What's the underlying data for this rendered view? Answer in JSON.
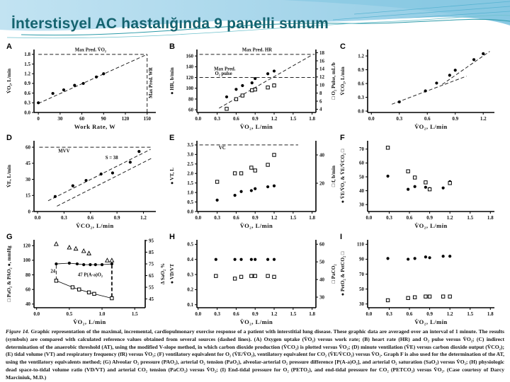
{
  "slide": {
    "title": "İnterstisyel AC hastalığında 9 panelli sunum"
  },
  "colors": {
    "title_text": "#14636f",
    "header_blue": "#aad7ea",
    "header_blue_dark": "#84c6e0",
    "wave_line": "#2b9aa8",
    "ink": "#111111"
  },
  "caption": {
    "label": "Figure 14.",
    "text": " Graphic representation of the maximal, incremental, cardiopulmonary exercise response of a patient with interstitial lung disease. These graphic data are averaged over an interval of 1 minute. The results (symbols) are compared with calculated reference values obtained from several sources (dashed lines). (A) Oxygen uptake (V̇O₂) versus work rate; (B) heart rate (HR) and O₂ pulse versus V̇O₂; (C) indirect determination of the anaerobic threshold (AT), using the modified V-slope method, in which carbon dioxide production (V̇CO₂) is plotted versus V̇O₂; (D) minute ventilation (V̇E) versus carbon dioxide output (V̇CO₂); (E) tidal volume (VT) and respiratory frequency (fR) versus V̇O₂; (F) ventilatory equivalent for O₂ (V̇E/V̇O₂), ventilatory equivalent for CO₂ (V̇E/V̇CO₂) versus V̇O₂. Graph F is also used for the determination of the AT, using the ventilatory equivalents method; (G) Alveolar O₂ pressure (PAO₂), arterial O₂ tension (PaO₂), alveolar-arterial O₂ pressure difference [P(A-a)O₂], and arterial O₂ saturation (SaO₂) versus V̇O₂; (H) physiologic dead space-to-tidal volume ratio (VD/VT) and arterial CO₂ tension (PaCO₂) versus V̇O₂; (I) End-tidal pressure for O₂ (PETO₂), and end-tidal pressure for CO₂ (PETCO₂) versus V̇O₂. (Case courtesy of Darcy Marciniuk, M.D.)"
  },
  "chart_data": [
    {
      "id": "A",
      "type": "scatter",
      "xlabel": "Work Rate, W",
      "ylabel": "V̇O₂, L/min",
      "xlim": [
        -6,
        162
      ],
      "ylim": [
        0,
        1.95
      ],
      "xticks": {
        "v": [
          0,
          30,
          60,
          90,
          120,
          150
        ],
        "t": [
          "0",
          "30",
          "60",
          "90",
          "120",
          "150"
        ]
      },
      "yticks": {
        "v": [
          0,
          0.3,
          0.6,
          0.9,
          1.2,
          1.5,
          1.8
        ],
        "t": [
          "0.0",
          "0.3",
          "0.6",
          "0.9",
          "1.2",
          "1.5",
          "1.8"
        ]
      },
      "series": [
        {
          "name": "VO2",
          "marker": "fc",
          "axis": "l",
          "connect": false,
          "x": [
            0,
            20,
            35,
            50,
            62,
            80,
            90
          ],
          "y": [
            0.3,
            0.59,
            0.7,
            0.84,
            0.9,
            1.1,
            1.2
          ]
        }
      ],
      "lines": [
        {
          "x1": 0,
          "y1": 1.8,
          "x2": 150,
          "y2": 1.8
        },
        {
          "x1": 150,
          "y1": 0,
          "x2": 150,
          "y2": 1.8
        },
        {
          "x1": 0,
          "y1": 0.28,
          "x2": 150,
          "y2": 1.8
        }
      ],
      "ann": [
        {
          "x": 72,
          "y": 1.89,
          "t": "Max Pred. V̇O₂"
        },
        {
          "x": 157,
          "y": 0.92,
          "t": "Max Pred. WR",
          "r": -90
        }
      ]
    },
    {
      "id": "B",
      "type": "scatter",
      "xlabel": "V̇O₂, L/min",
      "ylabel": "● HR, b/min",
      "y2label": "□ O₂ Pulse, mL/b",
      "xlim": [
        -0.02,
        1.86
      ],
      "ylim": [
        55,
        172
      ],
      "y2lim": [
        3.2,
        18.8
      ],
      "xticks": {
        "v": [
          0,
          0.3,
          0.6,
          0.9,
          1.2,
          1.5,
          1.8
        ],
        "t": [
          "0.0",
          "0.3",
          "0.6",
          "0.9",
          "1.2",
          "1.5",
          "1.8"
        ]
      },
      "yticks": {
        "v": [
          60,
          80,
          100,
          120,
          140,
          160
        ],
        "t": [
          "60",
          "80",
          "100",
          "120",
          "140",
          "160"
        ]
      },
      "y2ticks": {
        "v": [
          4,
          6,
          8,
          10,
          12,
          14,
          16,
          18
        ],
        "t": [
          "4",
          "6",
          "8",
          "10",
          "12",
          "14",
          "16",
          "18"
        ]
      },
      "series": [
        {
          "name": "HR",
          "marker": "fc",
          "axis": "l",
          "connect": false,
          "x": [
            0.45,
            0.6,
            0.7,
            0.85,
            0.9,
            1.1,
            1.2
          ],
          "y": [
            84,
            98,
            105,
            110,
            118,
            127,
            132
          ]
        },
        {
          "name": "O2 pulse",
          "marker": "os",
          "axis": "r",
          "connect": false,
          "x": [
            0.45,
            0.6,
            0.7,
            0.85,
            0.9,
            1.1,
            1.2
          ],
          "y": [
            4.1,
            6.5,
            7.4,
            8.7,
            8.9,
            9.4,
            9.9
          ]
        }
      ],
      "lines": [
        {
          "x1": 0.02,
          "y1": 163,
          "x2": 1.84,
          "y2": 163
        },
        {
          "x1": 0.02,
          "y1": 120,
          "x2": 1.84,
          "y2": 120
        },
        {
          "x1": 0.33,
          "y1": 63,
          "x2": 1.8,
          "y2": 162
        }
      ],
      "ann": [
        {
          "x": 0.93,
          "y": 169,
          "t": "Max Pred. HR"
        },
        {
          "x": 0.42,
          "y": 133,
          "t": "Max Pred."
        },
        {
          "x": 0.4,
          "y": 124.5,
          "t": "O₂ pulse"
        }
      ]
    },
    {
      "id": "C",
      "type": "scatter",
      "xlabel": "V̇O₂, L/min",
      "ylabel": "V̇CO₂, L/min",
      "xlim": [
        -0.04,
        1.32
      ],
      "ylim": [
        -0.03,
        1.34
      ],
      "xticks": {
        "v": [
          0,
          0.3,
          0.6,
          0.9,
          1.2
        ],
        "t": [
          "0.0",
          "0.3",
          "0.6",
          "0.9",
          "1.2"
        ]
      },
      "yticks": {
        "v": [
          0,
          0.3,
          0.6,
          0.9,
          1.2
        ],
        "t": [
          "0.0",
          "0.3",
          "0.6",
          "0.9",
          "1.2"
        ]
      },
      "series": [
        {
          "name": "VCO2",
          "marker": "fc",
          "axis": "l",
          "connect": false,
          "x": [
            0.3,
            0.58,
            0.7,
            0.84,
            0.9,
            1.1,
            1.2
          ],
          "y": [
            0.2,
            0.44,
            0.61,
            0.78,
            0.89,
            1.12,
            1.25
          ]
        }
      ],
      "lines": [
        {
          "x1": 0.22,
          "y1": 0.15,
          "x2": 1.02,
          "y2": 0.76
        },
        {
          "x1": 0.76,
          "y1": 0.58,
          "x2": 1.27,
          "y2": 1.3
        }
      ],
      "ann": []
    },
    {
      "id": "D",
      "type": "scatter",
      "xlabel": "V̇CO₂, L/min",
      "ylabel": "V̇E, L/min",
      "xlim": [
        -0.04,
        1.34
      ],
      "ylim": [
        0,
        66
      ],
      "xticks": {
        "v": [
          0,
          0.3,
          0.6,
          0.9,
          1.2
        ],
        "t": [
          "0.0",
          "0.3",
          "0.6",
          "0.9",
          "1.2"
        ]
      },
      "yticks": {
        "v": [
          0,
          15,
          30,
          45,
          60
        ],
        "t": [
          "0",
          "15",
          "30",
          "45",
          "60"
        ]
      },
      "series": [
        {
          "name": "VE",
          "marker": "fc",
          "axis": "l",
          "connect": false,
          "x": [
            0.2,
            0.4,
            0.55,
            0.72,
            0.85,
            1.05,
            1.15
          ],
          "y": [
            14,
            24,
            29,
            35,
            36,
            46,
            56
          ]
        }
      ],
      "lines": [
        {
          "x1": 0.02,
          "y1": 60,
          "x2": 1.3,
          "y2": 60
        },
        {
          "x1": 0.12,
          "y1": 10,
          "x2": 1.28,
          "y2": 58
        },
        {
          "x1": 0.22,
          "y1": 5,
          "x2": 1.3,
          "y2": 50
        }
      ],
      "ann": [
        {
          "x": 0.3,
          "y": 55,
          "t": "MVV"
        },
        {
          "x": 0.84,
          "y": 49,
          "t": "S = 38"
        }
      ]
    },
    {
      "id": "E",
      "type": "scatter",
      "xlabel": "V̇O₂, L/min",
      "ylabel": "● VT, L",
      "y2label": "□ f, b/min",
      "xlim": [
        -0.02,
        1.86
      ],
      "ylim": [
        0,
        3.72
      ],
      "y2lim": [
        0,
        50
      ],
      "xticks": {
        "v": [
          0,
          0.3,
          0.6,
          0.9,
          1.2,
          1.5,
          1.8
        ],
        "t": [
          "0.0",
          "0.3",
          "0.6",
          "0.9",
          "1.2",
          "1.5",
          "1.8"
        ]
      },
      "yticks": {
        "v": [
          0,
          0.5,
          1.0,
          1.5,
          2.0,
          2.5,
          3.0,
          3.5
        ],
        "t": [
          "0.0",
          "0.5",
          "1.0",
          "1.5",
          "2.0",
          "2.5",
          "3.0",
          "3.5"
        ]
      },
      "y2ticks": {
        "v": [
          20,
          40
        ],
        "t": [
          "20",
          "40"
        ]
      },
      "series": [
        {
          "name": "VT",
          "marker": "fc",
          "axis": "l",
          "connect": false,
          "x": [
            0.3,
            0.58,
            0.68,
            0.84,
            0.9,
            1.1,
            1.2
          ],
          "y": [
            0.6,
            0.85,
            1.05,
            1.1,
            1.2,
            1.3,
            1.35
          ]
        },
        {
          "name": "f",
          "marker": "os",
          "axis": "r",
          "connect": false,
          "x": [
            0.3,
            0.58,
            0.68,
            0.84,
            0.9,
            1.1,
            1.2
          ],
          "y": [
            21,
            27,
            27,
            31,
            29,
            33,
            40
          ]
        }
      ],
      "lines": [
        {
          "x1": 0.02,
          "y1": 3.5,
          "x2": 1.58,
          "y2": 3.5
        }
      ],
      "ann": [
        {
          "x": 0.38,
          "y": 3.28,
          "t": "VC"
        }
      ]
    },
    {
      "id": "F",
      "type": "scatter",
      "xlabel": "V̇O₂, L/min",
      "ylabel": "● V̇E/V̇O₂ & V̇E/V̇CO₂ □",
      "xlim": [
        -0.02,
        1.86
      ],
      "ylim": [
        25,
        76
      ],
      "xticks": {
        "v": [
          0,
          0.3,
          0.6,
          0.9,
          1.2,
          1.5,
          1.8
        ],
        "t": [
          "0.0",
          "0.3",
          "0.6",
          "0.9",
          "1.2",
          "1.5",
          "1.8"
        ]
      },
      "yticks": {
        "v": [
          30,
          40,
          50,
          60,
          70
        ],
        "t": [
          "30",
          "40",
          "50",
          "60",
          "70"
        ]
      },
      "series": [
        {
          "name": "VE/VO2",
          "marker": "fc",
          "axis": "l",
          "connect": false,
          "x": [
            0.28,
            0.58,
            0.68,
            0.84,
            0.9,
            1.1,
            1.2
          ],
          "y": [
            50.5,
            41,
            43,
            42.5,
            41.5,
            42,
            46.5
          ]
        },
        {
          "name": "VE/VCO2",
          "marker": "os",
          "axis": "l",
          "connect": false,
          "x": [
            0.28,
            0.58,
            0.68,
            0.84,
            0.9,
            1.2
          ],
          "y": [
            71,
            54,
            49.5,
            46,
            41,
            45.5
          ]
        }
      ],
      "lines": [],
      "ann": []
    },
    {
      "id": "G",
      "type": "scatter",
      "xlabel": "V̇O₂, L/min",
      "ylabel": "□ PaO₂ & PAO₂ ●, mmHg",
      "y2label": "Δ SaO₂ %",
      "xlim": [
        -0.04,
        1.66
      ],
      "ylim": [
        35,
        128
      ],
      "y2lim": [
        37.5,
        95.6
      ],
      "xticks": {
        "v": [
          0,
          0.5,
          1.0,
          1.5
        ],
        "t": [
          "0.0",
          "0.5",
          "1.0",
          "1.5"
        ]
      },
      "yticks": {
        "v": [
          40,
          60,
          80,
          100,
          120
        ],
        "t": [
          "40",
          "60",
          "80",
          "100",
          "120"
        ]
      },
      "y2ticks": {
        "v": [
          45,
          55,
          65,
          75,
          85,
          95
        ],
        "t": [
          "45",
          "55",
          "65",
          "75",
          "85",
          "95"
        ]
      },
      "series": [
        {
          "name": "PAO2",
          "marker": "fc",
          "axis": "l",
          "connect": true,
          "x": [
            0.3,
            0.5,
            0.62,
            0.72,
            0.82,
            0.9,
            1.0,
            1.15
          ],
          "y": [
            95,
            96,
            95,
            94,
            94,
            94,
            94,
            95
          ]
        },
        {
          "name": "PaO2",
          "marker": "os",
          "axis": "l",
          "connect": true,
          "x": [
            0.3,
            0.55,
            0.65,
            0.8,
            0.88,
            1.15
          ],
          "y": [
            72,
            63,
            60,
            56,
            54,
            48
          ]
        },
        {
          "name": "SaO2",
          "marker": "ot",
          "axis": "r",
          "connect": false,
          "x": [
            0.3,
            0.5,
            0.6,
            0.72,
            0.8,
            1.08,
            1.15
          ],
          "y": [
            92,
            89,
            88,
            86,
            84,
            78,
            78
          ]
        }
      ],
      "lines": [
        {
          "x1": 0.3,
          "y1": 73,
          "x2": 0.3,
          "y2": 93
        },
        {
          "x1": 1.15,
          "y1": 50,
          "x2": 1.15,
          "y2": 93,
          "w": 2
        }
      ],
      "ann": [
        {
          "x": 0.25,
          "y": 83,
          "t": "24"
        },
        {
          "x": 0.82,
          "y": 78,
          "t": "47  P(A-a)O₂"
        }
      ]
    },
    {
      "id": "H",
      "type": "scatter",
      "xlabel": "V̇O₂, L/min",
      "ylabel": "● VD/VT",
      "y2label": "□ PaCO₂",
      "xlim": [
        -0.02,
        1.86
      ],
      "ylim": [
        0.08,
        0.53
      ],
      "y2lim": [
        24,
        62.5
      ],
      "xticks": {
        "v": [
          0,
          0.3,
          0.6,
          0.9,
          1.2,
          1.5,
          1.8
        ],
        "t": [
          "0.0",
          "0.3",
          "0.6",
          "0.9",
          "1.2",
          "1.5",
          "1.8"
        ]
      },
      "yticks": {
        "v": [
          0.1,
          0.2,
          0.3,
          0.4,
          0.5
        ],
        "t": [
          "0.1",
          "0.2",
          "0.3",
          "0.4",
          "0.5"
        ]
      },
      "y2ticks": {
        "v": [
          30,
          40,
          50,
          60
        ],
        "t": [
          "30",
          "40",
          "50",
          "60"
        ]
      },
      "series": [
        {
          "name": "VD/VT",
          "marker": "fc",
          "axis": "l",
          "connect": false,
          "x": [
            0.28,
            0.58,
            0.68,
            0.84,
            0.9,
            1.1,
            1.2
          ],
          "y": [
            0.4,
            0.4,
            0.4,
            0.4,
            0.4,
            0.4,
            0.4
          ]
        },
        {
          "name": "PaCO2",
          "marker": "os",
          "axis": "r",
          "connect": false,
          "x": [
            0.28,
            0.58,
            0.68,
            0.84,
            0.9,
            1.1,
            1.2
          ],
          "y": [
            42,
            40.5,
            41.5,
            42,
            42,
            42,
            41.5
          ]
        }
      ],
      "lines": [],
      "ann": []
    },
    {
      "id": "I",
      "type": "scatter",
      "xlabel": "V̇O₂, L/min",
      "ylabel": "● PetO₂ & PetCO₂ □",
      "xlim": [
        -0.02,
        1.86
      ],
      "ylim": [
        25,
        116
      ],
      "xticks": {
        "v": [
          0,
          0.3,
          0.6,
          0.9,
          1.2,
          1.5,
          1.8
        ],
        "t": [
          "0.0",
          "0.3",
          "0.6",
          "0.9",
          "1.2",
          "1.5",
          "1.8"
        ]
      },
      "yticks": {
        "v": [
          30,
          50,
          70,
          90,
          110
        ],
        "t": [
          "30",
          "50",
          "70",
          "90",
          "110"
        ]
      },
      "series": [
        {
          "name": "PetO2",
          "marker": "fc",
          "axis": "l",
          "connect": false,
          "x": [
            0.28,
            0.58,
            0.68,
            0.84,
            0.9,
            1.1,
            1.2
          ],
          "y": [
            91,
            90,
            91,
            93,
            92,
            94,
            94
          ]
        },
        {
          "name": "PetCO2",
          "marker": "os",
          "axis": "l",
          "connect": false,
          "x": [
            0.28,
            0.58,
            0.68,
            0.84,
            0.9,
            1.1,
            1.2
          ],
          "y": [
            35,
            38,
            39,
            40,
            40,
            40,
            40
          ]
        }
      ],
      "lines": [],
      "ann": []
    }
  ]
}
